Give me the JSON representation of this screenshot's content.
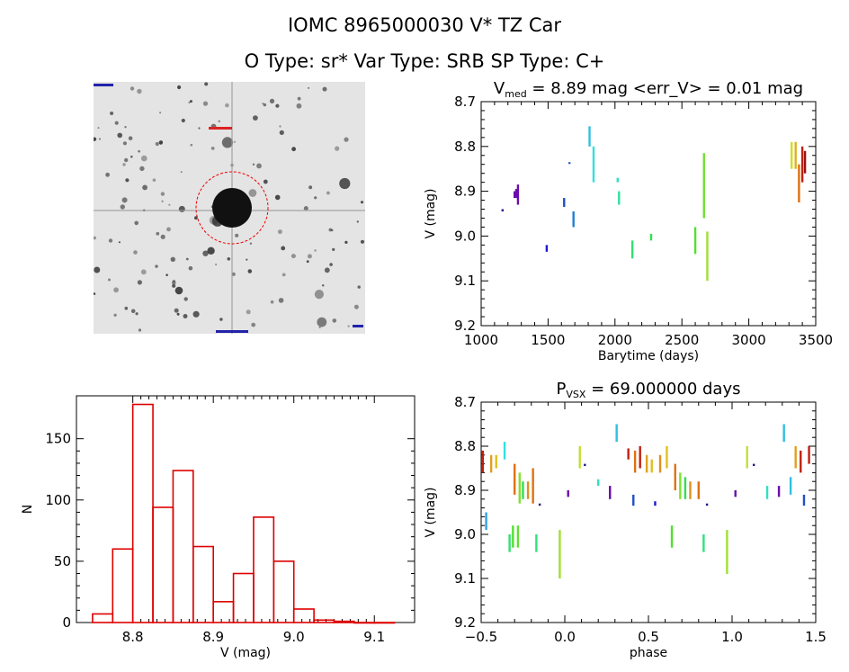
{
  "header": {
    "title": "IOMC 8965000030    V* TZ Car",
    "subtitle": "O Type: sr*  Var Type: SRB  SP Type: C+"
  },
  "chart_data": [
    {
      "type": "scatter",
      "title_prefix": "V",
      "title_sub": "med",
      "title_rest": " = 8.89 mag <err_V> = 0.01 mag",
      "xlabel": "Barytime (days)",
      "ylabel": "V (mag)",
      "xlim": [
        1000,
        3500
      ],
      "ylim": [
        9.2,
        8.7
      ],
      "y_inverted": true,
      "xticks": [
        1000,
        1500,
        2000,
        2500,
        3000,
        3500
      ],
      "yticks": [
        8.7,
        8.8,
        8.9,
        9.0,
        9.1,
        9.2
      ],
      "ytick_labels": [
        "8.7",
        "8.8",
        "8.9",
        "9.0",
        "9.1",
        "9.2"
      ],
      "points": [
        {
          "x": 1160,
          "y0": 8.94,
          "y1": 8.945,
          "color": "#1a1a8a"
        },
        {
          "x": 1250,
          "y0": 8.9,
          "y1": 8.915,
          "color": "#6a0dad"
        },
        {
          "x": 1262,
          "y0": 8.895,
          "y1": 8.915,
          "color": "#6a0dad"
        },
        {
          "x": 1275,
          "y0": 8.885,
          "y1": 8.93,
          "color": "#6a0dad"
        },
        {
          "x": 1490,
          "y0": 9.02,
          "y1": 9.035,
          "color": "#1a1ad0"
        },
        {
          "x": 1620,
          "y0": 8.915,
          "y1": 8.935,
          "color": "#2050c8"
        },
        {
          "x": 1660,
          "y0": 8.835,
          "y1": 8.838,
          "color": "#2050c8"
        },
        {
          "x": 1690,
          "y0": 8.945,
          "y1": 8.98,
          "color": "#2080d0"
        },
        {
          "x": 1810,
          "y0": 8.755,
          "y1": 8.8,
          "color": "#30c0e0"
        },
        {
          "x": 1840,
          "y0": 8.8,
          "y1": 8.88,
          "color": "#30e0e0"
        },
        {
          "x": 2020,
          "y0": 8.87,
          "y1": 8.88,
          "color": "#30e0c0"
        },
        {
          "x": 2030,
          "y0": 8.9,
          "y1": 8.93,
          "color": "#30e0a0"
        },
        {
          "x": 2130,
          "y0": 9.01,
          "y1": 9.05,
          "color": "#30e070"
        },
        {
          "x": 2270,
          "y0": 8.995,
          "y1": 9.01,
          "color": "#30e050"
        },
        {
          "x": 2600,
          "y0": 8.98,
          "y1": 9.04,
          "color": "#50e030"
        },
        {
          "x": 2665,
          "y0": 8.815,
          "y1": 8.96,
          "color": "#70e030"
        },
        {
          "x": 2690,
          "y0": 8.99,
          "y1": 9.1,
          "color": "#a0e030"
        },
        {
          "x": 3320,
          "y0": 8.79,
          "y1": 8.85,
          "color": "#d0e020"
        },
        {
          "x": 3350,
          "y0": 8.79,
          "y1": 8.85,
          "color": "#e0b020"
        },
        {
          "x": 3375,
          "y0": 8.84,
          "y1": 8.925,
          "color": "#e07010"
        },
        {
          "x": 3400,
          "y0": 8.8,
          "y1": 8.88,
          "color": "#c02010"
        },
        {
          "x": 3420,
          "y0": 8.81,
          "y1": 8.86,
          "color": "#a01010"
        }
      ]
    },
    {
      "type": "bar",
      "xlabel": "V (mag)",
      "ylabel": "N",
      "xlim": [
        8.73,
        9.15
      ],
      "ylim": [
        0,
        185
      ],
      "xticks": [
        8.8,
        8.9,
        9.0,
        9.1
      ],
      "xtick_labels": [
        "8.8",
        "8.9",
        "9.0",
        "9.1"
      ],
      "yticks": [
        0,
        50,
        100,
        150
      ],
      "bin_edges": [
        8.75,
        8.775,
        8.8,
        8.825,
        8.85,
        8.875,
        8.9,
        8.925,
        8.95,
        8.975,
        9.0,
        9.025,
        9.05,
        9.075,
        9.1,
        9.125
      ],
      "values": [
        7,
        60,
        178,
        94,
        124,
        62,
        17,
        40,
        86,
        50,
        11,
        2,
        1,
        0,
        0
      ],
      "bar_color": "#dd0000"
    },
    {
      "type": "scatter",
      "title_prefix": "P",
      "title_sub": "VSX",
      "title_rest": " = 69.000000 days",
      "xlabel": "phase",
      "ylabel": "V (mag)",
      "xlim": [
        -0.5,
        1.5
      ],
      "ylim": [
        9.2,
        8.7
      ],
      "y_inverted": true,
      "xticks": [
        -0.5,
        0.0,
        0.5,
        1.0,
        1.5
      ],
      "xtick_labels": [
        "−0.5",
        "0.0",
        "0.5",
        "1.0",
        "1.5"
      ],
      "yticks": [
        8.7,
        8.8,
        8.9,
        9.0,
        9.1,
        9.2
      ],
      "ytick_labels": [
        "8.7",
        "8.8",
        "8.9",
        "9.0",
        "9.1",
        "9.2"
      ],
      "points": [
        {
          "x": -0.49,
          "y0": 8.81,
          "y1": 8.86,
          "color": "#c02010"
        },
        {
          "x": -0.47,
          "y0": 8.95,
          "y1": 8.99,
          "color": "#30a0e0"
        },
        {
          "x": -0.44,
          "y0": 8.82,
          "y1": 8.86,
          "color": "#e0a020"
        },
        {
          "x": -0.41,
          "y0": 8.82,
          "y1": 8.85,
          "color": "#e0c020"
        },
        {
          "x": -0.36,
          "y0": 8.79,
          "y1": 8.83,
          "color": "#30e0e0"
        },
        {
          "x": -0.33,
          "y0": 9.0,
          "y1": 9.04,
          "color": "#30e070"
        },
        {
          "x": -0.31,
          "y0": 8.98,
          "y1": 9.03,
          "color": "#50e030"
        },
        {
          "x": -0.3,
          "y0": 8.84,
          "y1": 8.91,
          "color": "#e07010"
        },
        {
          "x": -0.28,
          "y0": 8.98,
          "y1": 9.03,
          "color": "#60e030"
        },
        {
          "x": -0.27,
          "y0": 8.86,
          "y1": 8.93,
          "color": "#80e030"
        },
        {
          "x": -0.25,
          "y0": 8.88,
          "y1": 8.92,
          "color": "#30e050"
        },
        {
          "x": -0.22,
          "y0": 8.88,
          "y1": 8.92,
          "color": "#e09020"
        },
        {
          "x": -0.19,
          "y0": 8.85,
          "y1": 8.93,
          "color": "#e07010"
        },
        {
          "x": -0.17,
          "y0": 9.0,
          "y1": 9.04,
          "color": "#30e080"
        },
        {
          "x": -0.15,
          "y0": 8.93,
          "y1": 8.935,
          "color": "#1a1a8a"
        },
        {
          "x": -0.03,
          "y0": 8.99,
          "y1": 9.1,
          "color": "#a0e030"
        },
        {
          "x": 0.02,
          "y0": 8.9,
          "y1": 8.915,
          "color": "#6a0dad"
        },
        {
          "x": 0.09,
          "y0": 8.8,
          "y1": 8.85,
          "color": "#c0e030"
        },
        {
          "x": 0.12,
          "y0": 8.84,
          "y1": 8.845,
          "color": "#1a1a8a"
        },
        {
          "x": 0.2,
          "y0": 8.875,
          "y1": 8.89,
          "color": "#30e0c0"
        },
        {
          "x": 0.27,
          "y0": 8.89,
          "y1": 8.92,
          "color": "#6a0dad"
        },
        {
          "x": 0.31,
          "y0": 8.75,
          "y1": 8.79,
          "color": "#30c0e0"
        },
        {
          "x": 0.38,
          "y0": 8.805,
          "y1": 8.83,
          "color": "#c02010"
        },
        {
          "x": 0.41,
          "y0": 8.91,
          "y1": 8.935,
          "color": "#2050c8"
        },
        {
          "x": 0.42,
          "y0": 8.81,
          "y1": 8.86,
          "color": "#e07010"
        },
        {
          "x": 0.45,
          "y0": 8.8,
          "y1": 8.85,
          "color": "#c02010"
        },
        {
          "x": 0.49,
          "y0": 8.82,
          "y1": 8.86,
          "color": "#e0a020"
        },
        {
          "x": 0.52,
          "y0": 8.83,
          "y1": 8.86,
          "color": "#e0c020"
        },
        {
          "x": 0.54,
          "y0": 8.925,
          "y1": 8.935,
          "color": "#1a1ad0"
        },
        {
          "x": 0.57,
          "y0": 8.82,
          "y1": 8.86,
          "color": "#e09020"
        },
        {
          "x": 0.61,
          "y0": 8.8,
          "y1": 8.85,
          "color": "#e0c020"
        },
        {
          "x": 0.64,
          "y0": 8.98,
          "y1": 9.03,
          "color": "#50e030"
        },
        {
          "x": 0.66,
          "y0": 8.84,
          "y1": 8.9,
          "color": "#e07010"
        },
        {
          "x": 0.69,
          "y0": 8.86,
          "y1": 8.92,
          "color": "#80e030"
        },
        {
          "x": 0.72,
          "y0": 8.87,
          "y1": 8.92,
          "color": "#30e050"
        },
        {
          "x": 0.75,
          "y0": 8.88,
          "y1": 8.92,
          "color": "#e09020"
        },
        {
          "x": 0.8,
          "y0": 8.88,
          "y1": 8.92,
          "color": "#e07010"
        },
        {
          "x": 0.83,
          "y0": 9.0,
          "y1": 9.04,
          "color": "#30e080"
        },
        {
          "x": 0.85,
          "y0": 8.93,
          "y1": 8.935,
          "color": "#1a1a8a"
        },
        {
          "x": 0.97,
          "y0": 8.99,
          "y1": 9.09,
          "color": "#a0e030"
        },
        {
          "x": 1.02,
          "y0": 8.9,
          "y1": 8.915,
          "color": "#6a0dad"
        },
        {
          "x": 1.09,
          "y0": 8.8,
          "y1": 8.85,
          "color": "#c0e030"
        },
        {
          "x": 1.13,
          "y0": 8.84,
          "y1": 8.845,
          "color": "#1a1a8a"
        },
        {
          "x": 1.21,
          "y0": 8.89,
          "y1": 8.92,
          "color": "#30e0c0"
        },
        {
          "x": 1.28,
          "y0": 8.89,
          "y1": 8.915,
          "color": "#6a0dad"
        },
        {
          "x": 1.31,
          "y0": 8.75,
          "y1": 8.79,
          "color": "#30c0e0"
        },
        {
          "x": 1.35,
          "y0": 8.87,
          "y1": 8.91,
          "color": "#30c0e0"
        },
        {
          "x": 1.38,
          "y0": 8.8,
          "y1": 8.85,
          "color": "#e0a020"
        },
        {
          "x": 1.41,
          "y0": 8.81,
          "y1": 8.86,
          "color": "#c02010"
        },
        {
          "x": 1.43,
          "y0": 8.91,
          "y1": 8.935,
          "color": "#2050c8"
        },
        {
          "x": 1.46,
          "y0": 8.8,
          "y1": 8.84,
          "color": "#c02010"
        }
      ]
    }
  ]
}
